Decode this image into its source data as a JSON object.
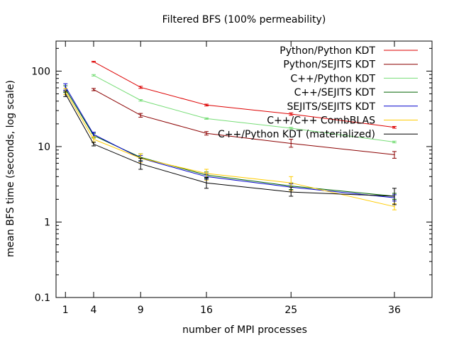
{
  "chart_data": {
    "type": "line",
    "title": "Filtered BFS (100% permeability)",
    "xlabel": "number of MPI processes",
    "ylabel": "mean BFS time (seconds, log scale)",
    "x": [
      1,
      4,
      9,
      16,
      25,
      36
    ],
    "x_ticks": [
      1,
      4,
      9,
      16,
      25,
      36
    ],
    "xlim": [
      0,
      40
    ],
    "y_scale": "log",
    "ylim": [
      0.1,
      250
    ],
    "y_ticks": [
      {
        "value": 0.1,
        "label": "0.1"
      },
      {
        "value": 1,
        "label": "1"
      },
      {
        "value": 10,
        "label": "10"
      },
      {
        "value": 100,
        "label": "100"
      }
    ],
    "grid": false,
    "legend_position": "top-right",
    "series": [
      {
        "name": "Python/Python KDT",
        "color": "#dd0000",
        "x": [
          4,
          9,
          16,
          25,
          36
        ],
        "values": [
          133,
          61,
          35.5,
          27,
          18
        ],
        "err": [
          [
            131,
            135
          ],
          [
            59,
            63
          ],
          [
            34.5,
            36.5
          ],
          [
            26,
            28
          ],
          [
            17.5,
            18.5
          ]
        ]
      },
      {
        "name": "Python/SEJITS KDT",
        "color": "#8b0000",
        "x": [
          4,
          9,
          16,
          25,
          36
        ],
        "values": [
          57,
          26,
          15,
          11,
          7.8
        ],
        "err": [
          [
            55,
            59
          ],
          [
            24.5,
            27.5
          ],
          [
            14.2,
            15.8
          ],
          [
            9.8,
            12.5
          ],
          [
            7.0,
            8.6
          ]
        ]
      },
      {
        "name": "C++/Python KDT",
        "color": "#77dd77",
        "x": [
          4,
          9,
          16,
          25,
          36
        ],
        "values": [
          88,
          41,
          23.5,
          17.5,
          11.5
        ],
        "err": [
          [
            86,
            90
          ],
          [
            40,
            42
          ],
          [
            23,
            24
          ],
          [
            17,
            18
          ],
          [
            11.2,
            11.8
          ]
        ]
      },
      {
        "name": "C++/SEJITS KDT",
        "color": "#006400",
        "x": [
          1,
          4,
          9,
          16,
          25,
          36
        ],
        "values": [
          58,
          14,
          7.2,
          4.2,
          3.0,
          2.2
        ],
        "err": [
          [
            52,
            64
          ],
          [
            13,
            15
          ],
          [
            6.5,
            8.0
          ],
          [
            3.8,
            4.6
          ],
          [
            2.7,
            3.3
          ],
          [
            2.0,
            2.4
          ]
        ]
      },
      {
        "name": "SEJITS/SEJITS KDT",
        "color": "#0000cc",
        "x": [
          1,
          4,
          9,
          16,
          25,
          36
        ],
        "values": [
          62,
          14.5,
          7.0,
          4.0,
          2.9,
          2.1
        ],
        "err": [
          [
            56,
            68
          ],
          [
            13.5,
            15.5
          ],
          [
            6.4,
            7.6
          ],
          [
            3.7,
            4.3
          ],
          [
            2.6,
            3.2
          ],
          [
            1.9,
            2.3
          ]
        ]
      },
      {
        "name": "C++/C++ CombBLAS",
        "color": "#ffcc00",
        "x": [
          1,
          4,
          9,
          16,
          25,
          36
        ],
        "values": [
          54,
          12.5,
          7.0,
          4.4,
          3.3,
          1.6
        ],
        "err": [
          [
            49,
            59
          ],
          [
            11.5,
            13.5
          ],
          [
            6.2,
            8.0
          ],
          [
            3.6,
            5.0
          ],
          [
            2.6,
            4.0
          ],
          [
            1.45,
            1.75
          ]
        ]
      },
      {
        "name": "C++/Python KDT (materialized)",
        "color": "#000000",
        "x": [
          1,
          4,
          9,
          16,
          25,
          36
        ],
        "values": [
          50,
          10.8,
          5.9,
          3.3,
          2.5,
          2.2
        ],
        "err": [
          [
            46,
            54
          ],
          [
            10.2,
            11.4
          ],
          [
            5.0,
            7.0
          ],
          [
            2.8,
            3.9
          ],
          [
            2.2,
            2.9
          ],
          [
            1.7,
            2.8
          ]
        ]
      }
    ]
  }
}
